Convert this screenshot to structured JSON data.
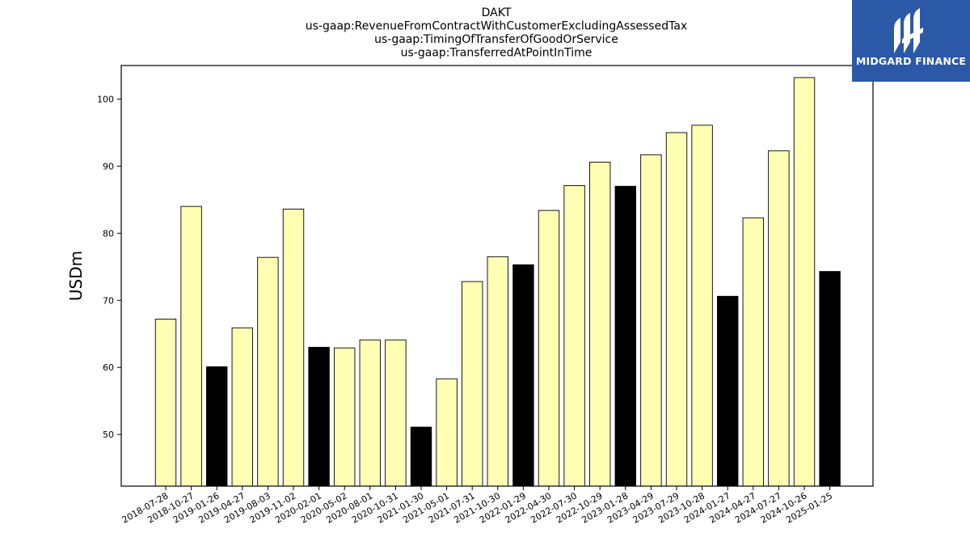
{
  "chart_data": {
    "type": "bar",
    "title_lines": [
      "DAKT",
      "us-gaap:RevenueFromContractWithCustomerExcludingAssessedTax",
      "us-gaap:TimingOfTransferOfGoodOrService",
      "us-gaap:TransferredAtPointInTime"
    ],
    "ylabel": "USDm",
    "xlabel": "",
    "ylim": [
      42.3,
      105
    ],
    "yticks": [
      50,
      60,
      70,
      80,
      90,
      100
    ],
    "categories": [
      "2018-07-28",
      "2018-10-27",
      "2019-01-26",
      "2019-04-27",
      "2019-08-03",
      "2019-11-02",
      "2020-02-01",
      "2020-05-02",
      "2020-08-01",
      "2020-10-31",
      "2021-01-30",
      "2021-05-01",
      "2021-07-31",
      "2021-10-30",
      "2022-01-29",
      "2022-04-30",
      "2022-07-30",
      "2022-10-29",
      "2023-01-28",
      "2023-04-29",
      "2023-07-29",
      "2023-10-28",
      "2024-01-27",
      "2024-04-27",
      "2024-07-27",
      "2024-10-26",
      "2025-01-25"
    ],
    "values": [
      67.2,
      84.0,
      60.1,
      65.9,
      76.4,
      83.6,
      63.0,
      62.9,
      64.1,
      64.1,
      51.1,
      58.3,
      72.8,
      76.5,
      75.3,
      83.4,
      87.1,
      90.6,
      87.0,
      91.7,
      95.0,
      96.1,
      70.6,
      82.3,
      92.3,
      103.2,
      74.3
    ],
    "highlighted": [
      false,
      false,
      true,
      false,
      false,
      false,
      true,
      false,
      false,
      false,
      true,
      false,
      false,
      false,
      true,
      false,
      false,
      false,
      true,
      false,
      false,
      false,
      true,
      false,
      false,
      false,
      true
    ],
    "colors": {
      "bar": "#ffffb3",
      "highlight": "#000000",
      "edge": "#000000"
    },
    "grid": false,
    "legend": "none"
  },
  "logo": {
    "text": "MIDGARD FINANCE",
    "background": "#2c58a8",
    "icon": "midgard-logo-icon"
  }
}
